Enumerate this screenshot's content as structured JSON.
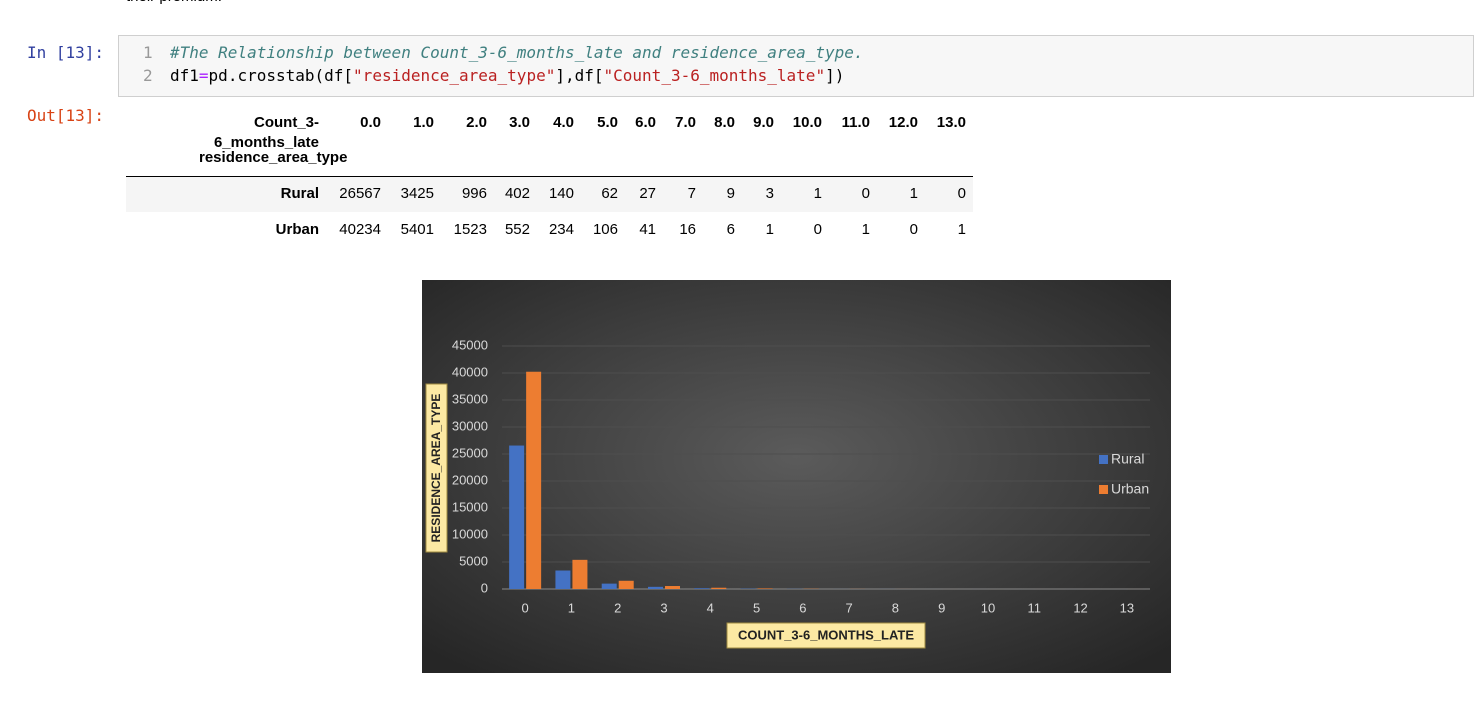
{
  "top_text": "their premium.",
  "input_cell": {
    "prompt": "In [13]:",
    "line_numbers": [
      "1",
      "2"
    ],
    "comment": "#The Relationship between Count_3-6_months_late and residence_area_type.",
    "code_tokens": [
      "df1",
      "=",
      "pd.crosstab(df[",
      "\"residence_area_type\"",
      "],df[",
      "\"Count_3-6_months_late\"",
      "])"
    ]
  },
  "output_cell": {
    "prompt": "Out[13]:",
    "table": {
      "columns_name": "Count_3-6_months_late",
      "columns": [
        "0.0",
        "1.0",
        "2.0",
        "3.0",
        "4.0",
        "5.0",
        "6.0",
        "7.0",
        "8.0",
        "9.0",
        "10.0",
        "11.0",
        "12.0",
        "13.0"
      ],
      "index_name": "residence_area_type",
      "rows": [
        {
          "label": "Rural",
          "cells": [
            "26567",
            "3425",
            "996",
            "402",
            "140",
            "62",
            "27",
            "7",
            "9",
            "3",
            "1",
            "0",
            "1",
            "0"
          ]
        },
        {
          "label": "Urban",
          "cells": [
            "40234",
            "5401",
            "1523",
            "552",
            "234",
            "106",
            "41",
            "16",
            "6",
            "1",
            "0",
            "1",
            "0",
            "1"
          ]
        }
      ]
    }
  },
  "chart_data": {
    "type": "bar",
    "categories": [
      "0",
      "1",
      "2",
      "3",
      "4",
      "5",
      "6",
      "7",
      "8",
      "9",
      "10",
      "11",
      "12",
      "13"
    ],
    "series": [
      {
        "name": "Rural",
        "color": "#4472c4",
        "values": [
          26567,
          3425,
          996,
          402,
          140,
          62,
          27,
          7,
          9,
          3,
          1,
          0,
          1,
          0
        ]
      },
      {
        "name": "Urban",
        "color": "#ed7d31",
        "values": [
          40234,
          5401,
          1523,
          552,
          234,
          106,
          41,
          16,
          6,
          1,
          0,
          1,
          0,
          1
        ]
      }
    ],
    "ylim": [
      0,
      45000
    ],
    "yticks": [
      0,
      5000,
      10000,
      15000,
      20000,
      25000,
      30000,
      35000,
      40000,
      45000
    ],
    "grid": true,
    "legend": "right",
    "x_label": "COUNT_3-6_MONTHS_LATE",
    "y_label": "RESIDENCE_AREA_TYPE"
  }
}
